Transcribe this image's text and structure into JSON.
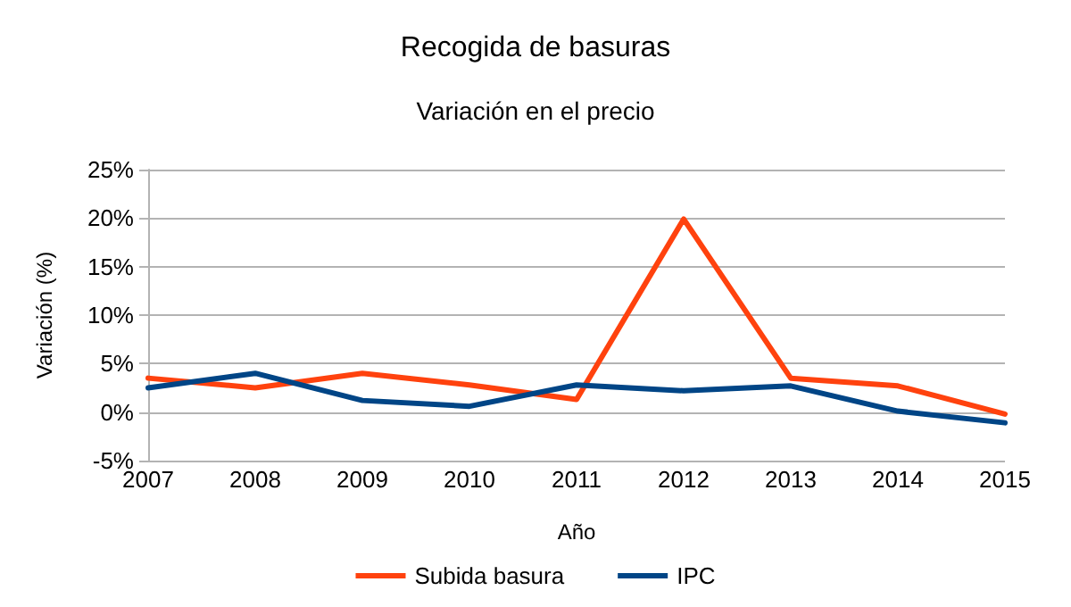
{
  "chart_data": {
    "type": "line",
    "title": "Recogida de basuras",
    "subtitle": "Variación en el precio",
    "xlabel": "Año",
    "ylabel": "Variación (%)",
    "categories": [
      "2007",
      "2008",
      "2009",
      "2010",
      "2011",
      "2012",
      "2013",
      "2014",
      "2015"
    ],
    "series": [
      {
        "name": "Subida basura",
        "color": "#ff420e",
        "values": [
          3.5,
          2.5,
          4.0,
          2.8,
          1.3,
          19.9,
          3.5,
          2.7,
          -0.2
        ]
      },
      {
        "name": "IPC",
        "color": "#004586",
        "values": [
          2.5,
          4.0,
          1.2,
          0.6,
          2.8,
          2.2,
          2.7,
          0.1,
          -1.1
        ]
      }
    ],
    "ylim": [
      -5,
      25
    ],
    "yticks": [
      {
        "value": -5,
        "label": "-5%"
      },
      {
        "value": 0,
        "label": "0%"
      },
      {
        "value": 5,
        "label": "5%"
      },
      {
        "value": 10,
        "label": "10%"
      },
      {
        "value": 15,
        "label": "15%"
      },
      {
        "value": 20,
        "label": "20%"
      },
      {
        "value": 25,
        "label": "25%"
      }
    ],
    "grid": "y",
    "legend": "bottom",
    "marker": "none",
    "line_style": "solid"
  }
}
